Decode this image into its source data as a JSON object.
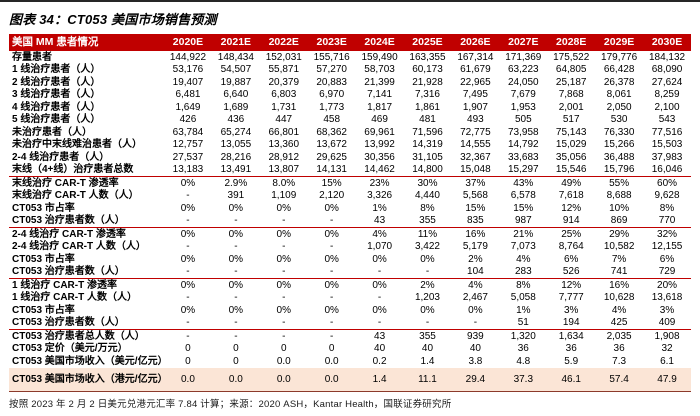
{
  "title": "图表 34：CT053 美国市场销售预测",
  "footer": "按照 2023 年 2 月 2 日美元兑港元汇率 7.84 计算；来源：2020 ASH，Kantar Health，国联证券研究所",
  "colors": {
    "header_bg": "#C00000",
    "separator": "#C00000",
    "highlight_row_bg": "#FBE5D6",
    "bottom_line": "#8C3A2B"
  },
  "table": {
    "header_row": [
      "美国 MM 患者情况",
      "2020E",
      "2021E",
      "2022E",
      "2023E",
      "2024E",
      "2025E",
      "2026E",
      "2027E",
      "2028E",
      "2029E",
      "2030E"
    ],
    "sections": [
      {
        "name": "patient-pool",
        "rows": [
          {
            "label": "存量患者",
            "values": [
              "144,922",
              "148,434",
              "152,031",
              "155,716",
              "159,490",
              "163,355",
              "167,314",
              "171,369",
              "175,522",
              "179,776",
              "184,132"
            ]
          },
          {
            "label": "1 线治疗患者（人）",
            "values": [
              "53,176",
              "54,507",
              "55,871",
              "57,270",
              "58,703",
              "60,173",
              "61,679",
              "63,223",
              "64,805",
              "66,428",
              "68,090"
            ]
          },
          {
            "label": "2 线治疗患者（人）",
            "values": [
              "19,407",
              "19,887",
              "20,379",
              "20,883",
              "21,399",
              "21,928",
              "22,965",
              "24,050",
              "25,187",
              "26,378",
              "27,624"
            ]
          },
          {
            "label": "3 线治疗患者（人）",
            "values": [
              "6,481",
              "6,640",
              "6,803",
              "6,970",
              "7,141",
              "7,316",
              "7,495",
              "7,679",
              "7,868",
              "8,061",
              "8,259"
            ]
          },
          {
            "label": "4 线治疗患者（人）",
            "values": [
              "1,649",
              "1,689",
              "1,731",
              "1,773",
              "1,817",
              "1,861",
              "1,907",
              "1,953",
              "2,001",
              "2,050",
              "2,100"
            ]
          },
          {
            "label": "5 线治疗患者（人）",
            "values": [
              "426",
              "436",
              "447",
              "458",
              "469",
              "481",
              "493",
              "505",
              "517",
              "530",
              "543"
            ]
          },
          {
            "label": "未治疗患者（人）",
            "values": [
              "63,784",
              "65,274",
              "66,801",
              "68,362",
              "69,961",
              "71,596",
              "72,775",
              "73,958",
              "75,143",
              "76,330",
              "77,516"
            ]
          },
          {
            "label": "未治疗中末线难治患者（人）",
            "values": [
              "12,757",
              "13,055",
              "13,360",
              "13,672",
              "13,992",
              "14,319",
              "14,555",
              "14,792",
              "15,029",
              "15,266",
              "15,503"
            ]
          },
          {
            "label": "2-4 线治疗患者（人）",
            "values": [
              "27,537",
              "28,216",
              "28,912",
              "29,625",
              "30,356",
              "31,105",
              "32,367",
              "33,683",
              "35,056",
              "36,488",
              "37,983"
            ]
          },
          {
            "label": "末线（4+线）治疗患者总数",
            "values": [
              "13,183",
              "13,491",
              "13,807",
              "14,131",
              "14,462",
              "14,800",
              "15,048",
              "15,297",
              "15,546",
              "15,796",
              "16,046"
            ]
          }
        ]
      },
      {
        "name": "last-line-cart",
        "rows": [
          {
            "label": "末线治疗 CAR-T 渗透率",
            "values": [
              "0%",
              "2.9%",
              "8.0%",
              "15%",
              "23%",
              "30%",
              "37%",
              "43%",
              "49%",
              "55%",
              "60%"
            ]
          },
          {
            "label": "末线治疗 CAR-T 人数（人）",
            "values": [
              "-",
              "391",
              "1,109",
              "2,120",
              "3,326",
              "4,440",
              "5,568",
              "6,578",
              "7,618",
              "8,688",
              "9,628"
            ]
          },
          {
            "label": "CT053 市占率",
            "values": [
              "0%",
              "0%",
              "0%",
              "0%",
              "1%",
              "8%",
              "15%",
              "15%",
              "12%",
              "10%",
              "8%"
            ]
          },
          {
            "label": "CT053 治疗患者数（人）",
            "values": [
              "-",
              "-",
              "-",
              "-",
              "43",
              "355",
              "835",
              "987",
              "914",
              "869",
              "770"
            ]
          }
        ]
      },
      {
        "name": "line-2-4-cart",
        "rows": [
          {
            "label": "2-4 线治疗 CAR-T 渗透率",
            "values": [
              "0%",
              "0%",
              "0%",
              "0%",
              "4%",
              "11%",
              "16%",
              "21%",
              "25%",
              "29%",
              "32%"
            ]
          },
          {
            "label": "2-4 线治疗 CAR-T 人数（人）",
            "values": [
              "-",
              "-",
              "-",
              "-",
              "1,070",
              "3,422",
              "5,179",
              "7,073",
              "8,764",
              "10,582",
              "12,155"
            ]
          },
          {
            "label": "CT053 市占率",
            "values": [
              "0%",
              "0%",
              "0%",
              "0%",
              "0%",
              "0%",
              "2%",
              "4%",
              "6%",
              "7%",
              "6%"
            ]
          },
          {
            "label": "CT053 治疗患者数（人）",
            "values": [
              "-",
              "-",
              "-",
              "-",
              "-",
              "-",
              "104",
              "283",
              "526",
              "741",
              "729"
            ]
          }
        ]
      },
      {
        "name": "line-1-cart",
        "rows": [
          {
            "label": "1 线治疗 CAR-T 渗透率",
            "values": [
              "0%",
              "0%",
              "0%",
              "0%",
              "0%",
              "2%",
              "4%",
              "8%",
              "12%",
              "16%",
              "20%"
            ]
          },
          {
            "label": "1 线治疗 CAR-T 人数（人）",
            "values": [
              "-",
              "-",
              "-",
              "-",
              "-",
              "1,203",
              "2,467",
              "5,058",
              "7,777",
              "10,628",
              "13,618"
            ]
          },
          {
            "label": "CT053 市占率",
            "values": [
              "0%",
              "0%",
              "0%",
              "0%",
              "0%",
              "0%",
              "0%",
              "1%",
              "3%",
              "4%",
              "3%"
            ]
          },
          {
            "label": "CT053 治疗患者数（人）",
            "values": [
              "-",
              "-",
              "-",
              "-",
              "-",
              "-",
              "-",
              "51",
              "194",
              "425",
              "409"
            ]
          }
        ]
      },
      {
        "name": "totals",
        "rows": [
          {
            "label": "CT053 治疗患者总人数（人）",
            "values": [
              "-",
              "-",
              "-",
              "-",
              "43",
              "355",
              "939",
              "1,320",
              "1,634",
              "2,035",
              "1,908"
            ]
          },
          {
            "label": "CT053 定价（美元/万元）",
            "values": [
              "0",
              "0",
              "0",
              "0",
              "40",
              "40",
              "40",
              "36",
              "36",
              "36",
              "32"
            ]
          },
          {
            "label": "CT053 美国市场收入（美元/亿元）",
            "values": [
              "0",
              "0",
              "0.0",
              "0.0",
              "0.2",
              "1.4",
              "3.8",
              "4.8",
              "5.9",
              "7.3",
              "6.1"
            ]
          },
          {
            "label": "CT053 美国市场收入（港元/亿元）",
            "values": [
              "0.0",
              "0.0",
              "0.0",
              "0.0",
              "1.4",
              "11.1",
              "29.4",
              "37.3",
              "46.1",
              "57.4",
              "47.9"
            ],
            "highlight": true
          }
        ]
      }
    ]
  }
}
